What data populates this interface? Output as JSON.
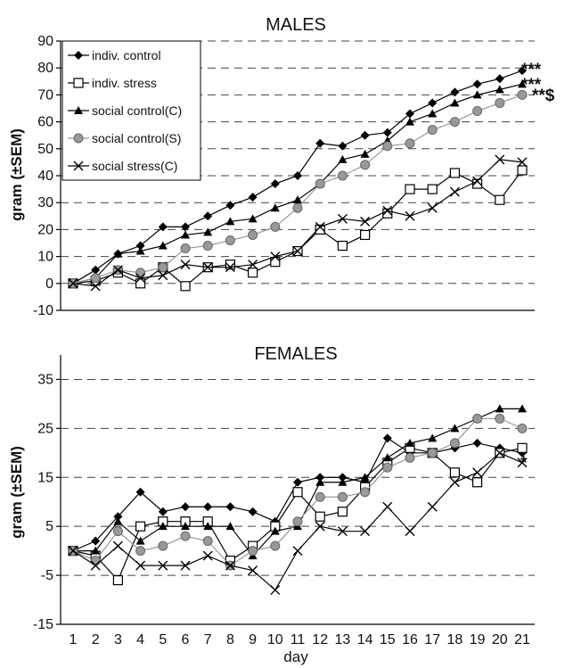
{
  "chart_data": [
    {
      "type": "line",
      "title": "MALES",
      "ylabel": "gram (±SEM)",
      "xlabel": "",
      "ylim": [
        -10,
        90
      ],
      "yticks": [
        -10,
        0,
        10,
        20,
        30,
        40,
        50,
        60,
        70,
        80,
        90
      ],
      "grid": true,
      "legend_position": "top-left",
      "x": [
        1,
        2,
        3,
        4,
        5,
        6,
        7,
        8,
        9,
        10,
        11,
        12,
        13,
        14,
        15,
        16,
        17,
        18,
        19,
        20,
        21
      ],
      "series": [
        {
          "name": "indiv. control",
          "marker": "filled-diamond",
          "color": "#000000",
          "values": [
            0,
            5,
            11,
            14,
            21,
            21,
            25,
            29,
            32,
            37,
            40,
            52,
            51,
            55,
            56,
            63,
            67,
            71,
            74,
            76,
            79
          ]
        },
        {
          "name": "indiv. stress",
          "marker": "open-square",
          "color": "#000000",
          "values": [
            0,
            1,
            4,
            0,
            6,
            -1,
            6,
            7,
            4,
            8,
            12,
            20,
            14,
            18,
            26,
            35,
            35,
            41,
            37,
            31,
            42
          ]
        },
        {
          "name": "social control(C)",
          "marker": "filled-triangle",
          "color": "#000000",
          "values": [
            0,
            2,
            11,
            12,
            14,
            18,
            19,
            23,
            24,
            28,
            31,
            37,
            46,
            48,
            53,
            60,
            63,
            67,
            70,
            72,
            74
          ]
        },
        {
          "name": "social control(S)",
          "marker": "filled-circle",
          "color": "#999999",
          "values": [
            0,
            2,
            5,
            4,
            6,
            13,
            14,
            16,
            18,
            21,
            28,
            37,
            40,
            44,
            51,
            52,
            57,
            60,
            64,
            67,
            70
          ]
        },
        {
          "name": "social stress(C)",
          "marker": "cross",
          "color": "#000000",
          "values": [
            0,
            -1,
            5,
            2,
            3,
            7,
            6,
            6,
            7,
            10,
            12,
            21,
            24,
            23,
            27,
            25,
            28,
            34,
            38,
            46,
            45
          ]
        }
      ],
      "annotations": [
        "***",
        "***",
        "**$"
      ]
    },
    {
      "type": "line",
      "title": "FEMALES",
      "ylabel": "gram (±SEM)",
      "xlabel": "day",
      "ylim": [
        -15,
        40
      ],
      "yticks": [
        -15,
        -5,
        5,
        15,
        25,
        35
      ],
      "grid": true,
      "x": [
        1,
        2,
        3,
        4,
        5,
        6,
        7,
        8,
        9,
        10,
        11,
        12,
        13,
        14,
        15,
        16,
        17,
        18,
        19,
        20,
        21
      ],
      "x_tick_labels": [
        "1",
        "2",
        "3",
        "4",
        "5",
        "6",
        "7",
        "8",
        "9",
        "10",
        "11",
        "12",
        "13",
        "14",
        "15",
        "16",
        "17",
        "18",
        "19",
        "20",
        "21"
      ],
      "series": [
        {
          "name": "indiv. control",
          "marker": "filled-diamond",
          "color": "#000000",
          "values": [
            0,
            2,
            7,
            12,
            8,
            9,
            9,
            9,
            8,
            6,
            14,
            15,
            15,
            14,
            23,
            20,
            20,
            21,
            22,
            21,
            20
          ]
        },
        {
          "name": "indiv. stress",
          "marker": "open-square",
          "color": "#000000",
          "values": [
            0,
            -1,
            -6,
            5,
            6,
            6,
            6,
            -2,
            1,
            5,
            12,
            7,
            8,
            13,
            18,
            21,
            20,
            16,
            14,
            20,
            21
          ]
        },
        {
          "name": "social control(C)",
          "marker": "filled-triangle",
          "color": "#000000",
          "values": [
            0,
            0,
            6,
            2,
            5,
            5,
            5,
            5,
            -1,
            4,
            5,
            14,
            14,
            15,
            19,
            22,
            23,
            25,
            27,
            29,
            29
          ]
        },
        {
          "name": "social control(S)",
          "marker": "filled-circle",
          "color": "#999999",
          "values": [
            0,
            -2,
            4,
            0,
            1,
            3,
            2,
            -3,
            0,
            1,
            6,
            11,
            11,
            12,
            17,
            19,
            20,
            22,
            27,
            27,
            25
          ]
        },
        {
          "name": "social stress(C)",
          "marker": "cross",
          "color": "#000000",
          "values": [
            0,
            -3,
            1,
            -3,
            -3,
            -3,
            -1,
            -3,
            -4,
            -8,
            0,
            5,
            4,
            4,
            9,
            4,
            9,
            14,
            16,
            20,
            18
          ]
        }
      ],
      "annotations": [
        "*"
      ]
    }
  ]
}
